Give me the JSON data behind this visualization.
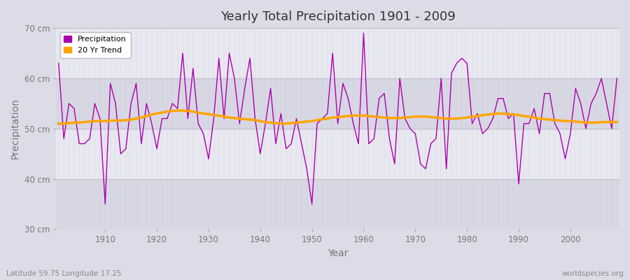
{
  "title": "Yearly Total Precipitation 1901 - 2009",
  "xlabel": "Year",
  "ylabel": "Precipitation",
  "x_label_bottom_left": "Latitude 59.75 Longitude 17.25",
  "x_label_bottom_right": "worldspecies.org",
  "ylim": [
    30,
    70
  ],
  "yticks": [
    30,
    40,
    50,
    60,
    70
  ],
  "ytick_labels": [
    "30 cm",
    "40 cm",
    "50 cm",
    "60 cm",
    "70 cm"
  ],
  "years": [
    1901,
    1902,
    1903,
    1904,
    1905,
    1906,
    1907,
    1908,
    1909,
    1910,
    1911,
    1912,
    1913,
    1914,
    1915,
    1916,
    1917,
    1918,
    1919,
    1920,
    1921,
    1922,
    1923,
    1924,
    1925,
    1926,
    1927,
    1928,
    1929,
    1930,
    1931,
    1932,
    1933,
    1934,
    1935,
    1936,
    1937,
    1938,
    1939,
    1940,
    1941,
    1942,
    1943,
    1944,
    1945,
    1946,
    1947,
    1948,
    1949,
    1950,
    1951,
    1952,
    1953,
    1954,
    1955,
    1956,
    1957,
    1958,
    1959,
    1960,
    1961,
    1962,
    1963,
    1964,
    1965,
    1966,
    1967,
    1968,
    1969,
    1970,
    1971,
    1972,
    1973,
    1974,
    1975,
    1976,
    1977,
    1978,
    1979,
    1980,
    1981,
    1982,
    1983,
    1984,
    1985,
    1986,
    1987,
    1988,
    1989,
    1990,
    1991,
    1992,
    1993,
    1994,
    1995,
    1996,
    1997,
    1998,
    1999,
    2000,
    2001,
    2002,
    2003,
    2004,
    2005,
    2006,
    2007,
    2008,
    2009
  ],
  "precip": [
    63,
    48,
    55,
    54,
    47,
    47,
    48,
    55,
    52,
    35,
    59,
    55,
    45,
    46,
    55,
    59,
    47,
    55,
    51,
    46,
    52,
    52,
    55,
    54,
    65,
    52,
    62,
    51,
    49,
    44,
    52,
    64,
    52,
    65,
    60,
    51,
    58,
    64,
    52,
    45,
    51,
    58,
    47,
    53,
    46,
    47,
    52,
    47,
    42,
    35,
    51,
    52,
    53,
    65,
    51,
    59,
    56,
    51,
    47,
    69,
    47,
    48,
    56,
    57,
    48,
    43,
    60,
    52,
    50,
    49,
    43,
    42,
    47,
    48,
    60,
    42,
    61,
    63,
    64,
    63,
    51,
    53,
    49,
    50,
    52,
    56,
    56,
    52,
    53,
    39,
    51,
    51,
    54,
    49,
    57,
    57,
    51,
    49,
    44,
    49,
    58,
    55,
    50,
    55,
    57,
    60,
    55,
    50,
    60
  ],
  "trend": [
    51.0,
    51.0,
    51.1,
    51.2,
    51.2,
    51.3,
    51.4,
    51.5,
    51.5,
    51.5,
    51.6,
    51.6,
    51.6,
    51.7,
    51.8,
    52.0,
    52.2,
    52.5,
    52.8,
    53.0,
    53.2,
    53.4,
    53.5,
    53.6,
    53.6,
    53.5,
    53.4,
    53.2,
    53.0,
    52.9,
    52.7,
    52.6,
    52.4,
    52.2,
    52.1,
    52.0,
    51.9,
    51.8,
    51.7,
    51.5,
    51.3,
    51.2,
    51.1,
    51.0,
    51.0,
    51.1,
    51.2,
    51.3,
    51.4,
    51.5,
    51.7,
    51.9,
    52.0,
    52.2,
    52.3,
    52.4,
    52.5,
    52.6,
    52.6,
    52.6,
    52.5,
    52.4,
    52.3,
    52.2,
    52.1,
    52.1,
    52.1,
    52.2,
    52.3,
    52.4,
    52.4,
    52.4,
    52.3,
    52.2,
    52.1,
    52.0,
    52.0,
    52.0,
    52.1,
    52.2,
    52.4,
    52.5,
    52.7,
    52.8,
    52.9,
    53.0,
    53.0,
    52.9,
    52.8,
    52.7,
    52.5,
    52.4,
    52.2,
    52.0,
    51.9,
    51.8,
    51.7,
    51.6,
    51.5,
    51.5,
    51.4,
    51.3,
    51.2,
    51.2,
    51.2,
    51.3,
    51.3,
    51.3,
    51.3
  ],
  "precip_color": "#aa00aa",
  "trend_color": "#FFA500",
  "bg_outer": "#dcdce8",
  "bg_band_light": "#e8e8f0",
  "bg_band_dark": "#d8d8e4",
  "grid_color": "#c8c8d8",
  "legend_precip": "Precipitation",
  "legend_trend": "20 Yr Trend"
}
